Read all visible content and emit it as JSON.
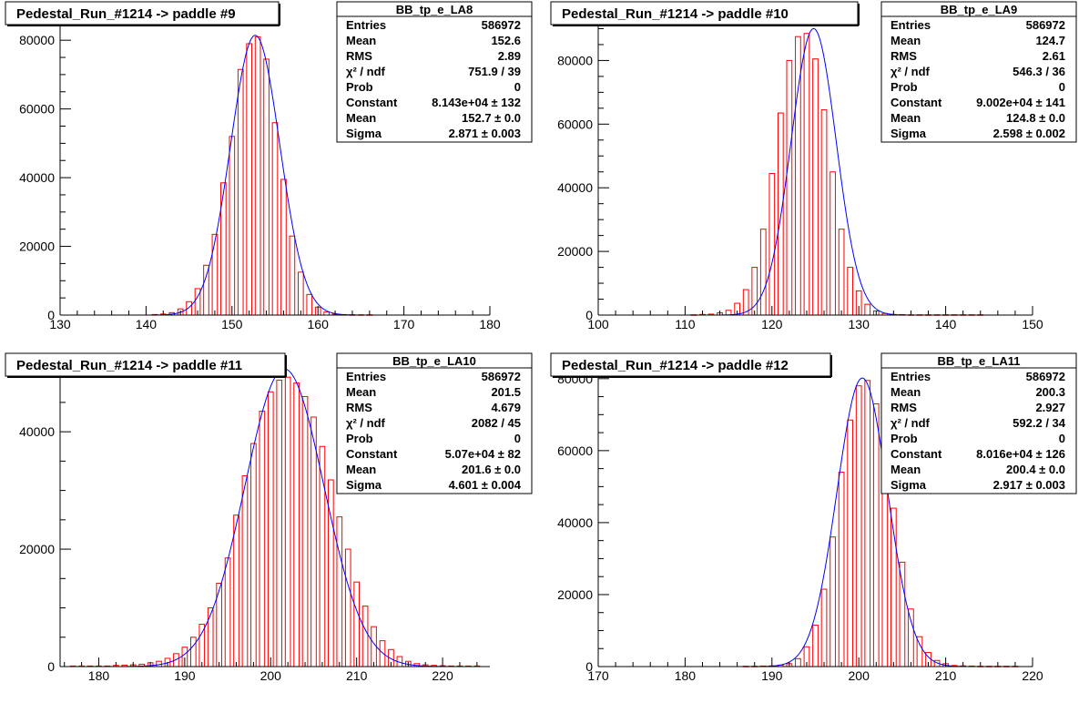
{
  "chart_data": [
    {
      "type": "bar",
      "title": "Pedestal_Run_#1214 -> paddle #9",
      "xlim": [
        130,
        180
      ],
      "ylim": [
        0,
        88000
      ],
      "x_ticks": [
        130,
        140,
        150,
        160,
        170,
        180
      ],
      "y_ticks": [
        0,
        20000,
        40000,
        60000,
        80000
      ],
      "bin_width": 1,
      "x": [
        141,
        142,
        143,
        144,
        145,
        146,
        147,
        148,
        149,
        150,
        151,
        152,
        153,
        154,
        155,
        156,
        157,
        158,
        159,
        160,
        161,
        162,
        163,
        164,
        165,
        166
      ],
      "values": [
        150,
        300,
        700,
        1800,
        3900,
        7700,
        14500,
        23500,
        38500,
        52000,
        71500,
        79000,
        81000,
        74500,
        56000,
        39500,
        23000,
        12500,
        6000,
        2300,
        900,
        300,
        150,
        100,
        100,
        100
      ],
      "fit": {
        "type": "gaus",
        "constant": 81430,
        "mean": 152.7,
        "sigma": 2.871,
        "color": "#0000ff"
      },
      "bar_color": "#ff0000",
      "stats": {
        "name": "BB_tp_e_LA8",
        "rows": [
          {
            "label": "Entries",
            "value": "586972"
          },
          {
            "label": "Mean",
            "value": "152.6"
          },
          {
            "label": "RMS",
            "value": "2.89"
          },
          {
            "label": "χ² / ndf",
            "value": "751.9 / 39"
          },
          {
            "label": "Prob",
            "value": "0"
          },
          {
            "label": "Constant",
            "value": "8.143e+04 ± 132"
          },
          {
            "label": "Mean",
            "value": "152.7 ± 0.0"
          },
          {
            "label": "Sigma",
            "value": "2.871 ± 0.003"
          }
        ]
      }
    },
    {
      "type": "bar",
      "title": "Pedestal_Run_#1214 -> paddle #10",
      "xlim": [
        100,
        150
      ],
      "ylim": [
        0,
        95000
      ],
      "x_ticks": [
        100,
        110,
        120,
        130,
        140,
        150
      ],
      "y_ticks": [
        0,
        20000,
        40000,
        60000,
        80000
      ],
      "bin_width": 1,
      "x": [
        111,
        112,
        113,
        114,
        115,
        116,
        117,
        118,
        119,
        120,
        121,
        122,
        123,
        124,
        125,
        126,
        127,
        128,
        129,
        130,
        131,
        132,
        133,
        134,
        135,
        136,
        137,
        138,
        139,
        140,
        141,
        142,
        143,
        144
      ],
      "values": [
        100,
        200,
        300,
        700,
        1500,
        3700,
        8000,
        15000,
        27000,
        44500,
        63500,
        80000,
        87500,
        88500,
        80500,
        64500,
        45000,
        27000,
        15000,
        7600,
        3400,
        1300,
        500,
        200,
        150,
        100,
        100,
        100,
        100,
        100,
        100,
        100,
        100,
        100
      ],
      "fit": {
        "type": "gaus",
        "constant": 90020,
        "mean": 124.8,
        "sigma": 2.598,
        "color": "#0000ff"
      },
      "bar_color": "#ff0000",
      "stats": {
        "name": "BB_tp_e_LA9",
        "rows": [
          {
            "label": "Entries",
            "value": "586972"
          },
          {
            "label": "Mean",
            "value": "124.7"
          },
          {
            "label": "RMS",
            "value": "2.61"
          },
          {
            "label": "χ² / ndf",
            "value": "546.3 / 36"
          },
          {
            "label": "Prob",
            "value": "0"
          },
          {
            "label": "Constant",
            "value": "9.002e+04 ± 141"
          },
          {
            "label": "Mean",
            "value": "124.8 ± 0.0"
          },
          {
            "label": "Sigma",
            "value": "2.598 ± 0.002"
          }
        ]
      }
    },
    {
      "type": "bar",
      "title": "Pedestal_Run_#1214 -> paddle #11",
      "xlim": [
        175.5,
        225.5
      ],
      "ylim": [
        0,
        51500
      ],
      "x_ticks": [
        180,
        190,
        200,
        210,
        220
      ],
      "y_ticks": [
        0,
        20000,
        40000
      ],
      "bin_width": 1,
      "x": [
        177,
        178,
        179,
        180,
        181,
        182,
        183,
        184,
        185,
        186,
        187,
        188,
        189,
        190,
        191,
        192,
        193,
        194,
        195,
        196,
        197,
        198,
        199,
        200,
        201,
        202,
        203,
        204,
        205,
        206,
        207,
        208,
        209,
        210,
        211,
        212,
        213,
        214,
        215,
        216,
        217,
        218,
        219,
        220,
        221,
        222,
        223,
        224
      ],
      "values": [
        100,
        100,
        100,
        100,
        100,
        200,
        250,
        300,
        400,
        650,
        900,
        1400,
        2200,
        3300,
        5000,
        7200,
        10000,
        14200,
        18500,
        25800,
        32500,
        38000,
        43500,
        46800,
        48800,
        49300,
        48300,
        46000,
        42500,
        37500,
        31800,
        25500,
        20000,
        14400,
        10300,
        6800,
        4400,
        2900,
        1700,
        900,
        500,
        300,
        200,
        150,
        100,
        100,
        100,
        100
      ],
      "fit": {
        "type": "gaus",
        "constant": 50700,
        "mean": 201.6,
        "sigma": 4.601,
        "color": "#0000ff"
      },
      "bar_color": "#ff0000",
      "stats": {
        "name": "BB_tp_e_LA10",
        "rows": [
          {
            "label": "Entries",
            "value": "586972"
          },
          {
            "label": "Mean",
            "value": "201.5"
          },
          {
            "label": "RMS",
            "value": "4.679"
          },
          {
            "label": "χ² / ndf",
            "value": "2082 / 45"
          },
          {
            "label": "Prob",
            "value": "0"
          },
          {
            "label": "Constant",
            "value": "5.07e+04 ± 82"
          },
          {
            "label": "Mean",
            "value": "201.6 ± 0.0"
          },
          {
            "label": "Sigma",
            "value": "4.601 ± 0.004"
          }
        ]
      }
    },
    {
      "type": "bar",
      "title": "Pedestal_Run_#1214 -> paddle #12",
      "xlim": [
        170,
        220
      ],
      "ylim": [
        0,
        84000
      ],
      "x_ticks": [
        170,
        180,
        190,
        200,
        210,
        220
      ],
      "y_ticks": [
        0,
        20000,
        40000,
        60000,
        80000
      ],
      "bin_width": 1,
      "x": [
        187,
        188,
        189,
        190,
        191,
        192,
        193,
        194,
        195,
        196,
        197,
        198,
        199,
        200,
        201,
        202,
        203,
        204,
        205,
        206,
        207,
        208,
        209,
        210,
        211,
        212,
        213,
        214,
        215,
        216,
        217,
        218
      ],
      "values": [
        100,
        100,
        150,
        200,
        400,
        800,
        2200,
        5500,
        11500,
        21500,
        36000,
        54000,
        68500,
        78000,
        79500,
        73000,
        61500,
        44000,
        29000,
        16000,
        8300,
        3900,
        1700,
        800,
        300,
        200,
        150,
        100,
        100,
        100,
        100,
        100
      ],
      "fit": {
        "type": "gaus",
        "constant": 80160,
        "mean": 200.4,
        "sigma": 2.917,
        "color": "#0000ff"
      },
      "bar_color": "#ff0000",
      "stats": {
        "name": "BB_tp_e_LA11",
        "rows": [
          {
            "label": "Entries",
            "value": "586972"
          },
          {
            "label": "Mean",
            "value": "200.3"
          },
          {
            "label": "RMS",
            "value": "2.927"
          },
          {
            "label": "χ² / ndf",
            "value": "592.2 / 34"
          },
          {
            "label": "Prob",
            "value": "0"
          },
          {
            "label": "Constant",
            "value": "8.016e+04 ± 126"
          },
          {
            "label": "Mean",
            "value": "200.4 ± 0.0"
          },
          {
            "label": "Sigma",
            "value": "2.917 ± 0.003"
          }
        ]
      }
    }
  ]
}
